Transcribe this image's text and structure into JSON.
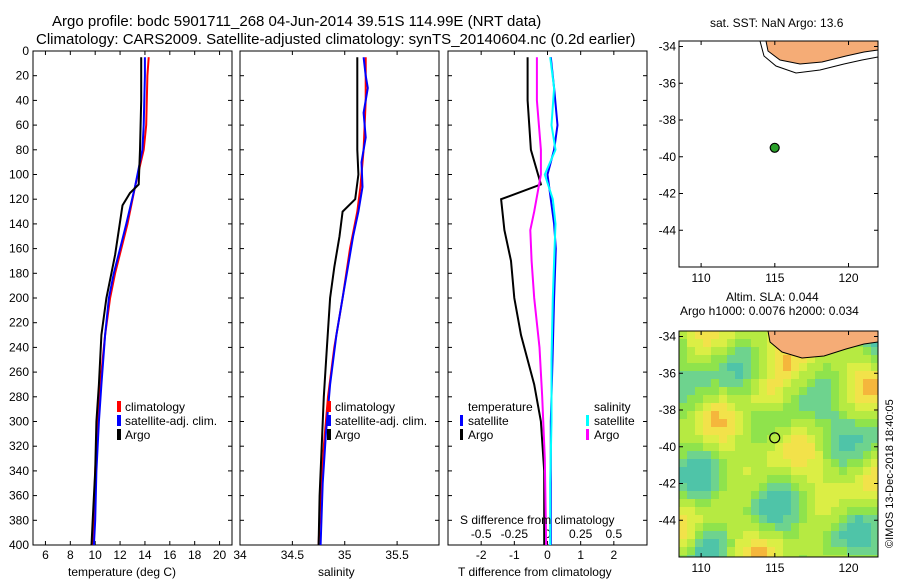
{
  "title_line1": "Argo profile: bodc 5901711_268 04-Jun-2014 39.51S 114.99E (NRT data)",
  "title_line2": "Climatology: CARS2009. Satellite-adjusted climatology: synTS_20140604.nc (0.2d earlier)",
  "stamp": "©IMOS 13-Dec-2018 18:40:05",
  "colors": {
    "climatology": "#ff0000",
    "satellite": "#0000ff",
    "argo": "#000000",
    "sat_salinity": "#00ffff",
    "argo_salinity": "#ff00ff",
    "land": "#f5ac76",
    "sea_base": "#7dde3c"
  },
  "depth_ticks": [
    0,
    20,
    40,
    60,
    80,
    100,
    120,
    140,
    160,
    180,
    200,
    220,
    240,
    260,
    280,
    300,
    320,
    340,
    360,
    380,
    400
  ],
  "chart_data": [
    {
      "id": "temperature",
      "type": "line",
      "xlabel": "temperature (deg C)",
      "ylabel": "depth",
      "xlim": [
        5,
        21
      ],
      "ylim": [
        400,
        0
      ],
      "x_ticks": [
        6,
        8,
        10,
        12,
        14,
        16,
        18,
        20
      ],
      "legend": [
        "climatology",
        "satellite-adj. clim.",
        "Argo"
      ],
      "series": [
        {
          "name": "climatology",
          "color": "#ff0000",
          "points": [
            [
              14.3,
              5
            ],
            [
              14.2,
              20
            ],
            [
              14.1,
              60
            ],
            [
              13.9,
              80
            ],
            [
              13.2,
              110
            ],
            [
              12.6,
              140
            ],
            [
              12.1,
              160
            ],
            [
              11.6,
              180
            ],
            [
              11.2,
              200
            ],
            [
              10.8,
              230
            ],
            [
              10.4,
              270
            ],
            [
              10.2,
              300
            ],
            [
              10.0,
              340
            ],
            [
              9.9,
              380
            ],
            [
              9.8,
              400
            ]
          ]
        },
        {
          "name": "satellite-adj. clim.",
          "color": "#0000ff",
          "points": [
            [
              14.0,
              5
            ],
            [
              14.0,
              20
            ],
            [
              13.9,
              60
            ],
            [
              13.8,
              80
            ],
            [
              13.2,
              110
            ],
            [
              12.5,
              140
            ],
            [
              12.0,
              160
            ],
            [
              11.5,
              180
            ],
            [
              11.1,
              200
            ],
            [
              10.8,
              230
            ],
            [
              10.5,
              270
            ],
            [
              10.3,
              300
            ],
            [
              10.1,
              340
            ],
            [
              10.0,
              380
            ],
            [
              9.9,
              400
            ]
          ]
        },
        {
          "name": "Argo",
          "color": "#000000",
          "points": [
            [
              13.7,
              5
            ],
            [
              13.7,
              40
            ],
            [
              13.6,
              80
            ],
            [
              13.5,
              108
            ],
            [
              12.8,
              115
            ],
            [
              12.2,
              125
            ],
            [
              11.9,
              145
            ],
            [
              11.6,
              165
            ],
            [
              11.3,
              180
            ],
            [
              10.9,
              200
            ],
            [
              10.5,
              230
            ],
            [
              10.3,
              270
            ],
            [
              10.1,
              300
            ],
            [
              10.0,
              340
            ],
            [
              9.8,
              380
            ],
            [
              9.7,
              400
            ]
          ]
        }
      ]
    },
    {
      "id": "salinity",
      "type": "line",
      "xlabel": "salinity",
      "ylabel": "depth",
      "xlim": [
        34,
        35.9
      ],
      "ylim": [
        400,
        0
      ],
      "x_ticks": [
        34,
        34.5,
        35,
        35.5
      ],
      "x_tick_labels": [
        "34",
        "34.5",
        "35",
        "35.5"
      ],
      "legend": [
        "climatology",
        "satellite-adj. clim.",
        "Argo"
      ],
      "series": [
        {
          "name": "climatology",
          "color": "#ff0000",
          "points": [
            [
              35.2,
              5
            ],
            [
              35.2,
              40
            ],
            [
              35.18,
              80
            ],
            [
              35.15,
              110
            ],
            [
              35.12,
              130
            ],
            [
              35.05,
              160
            ],
            [
              34.98,
              200
            ],
            [
              34.9,
              240
            ],
            [
              34.84,
              280
            ],
            [
              34.8,
              320
            ],
            [
              34.77,
              360
            ],
            [
              34.75,
              400
            ]
          ]
        },
        {
          "name": "satellite-adj. clim.",
          "color": "#0000ff",
          "points": [
            [
              35.18,
              5
            ],
            [
              35.2,
              20
            ],
            [
              35.22,
              30
            ],
            [
              35.18,
              50
            ],
            [
              35.2,
              70
            ],
            [
              35.16,
              90
            ],
            [
              35.17,
              110
            ],
            [
              35.13,
              130
            ],
            [
              35.08,
              150
            ],
            [
              35.03,
              175
            ],
            [
              34.98,
              200
            ],
            [
              34.92,
              230
            ],
            [
              34.86,
              270
            ],
            [
              34.82,
              310
            ],
            [
              34.79,
              350
            ],
            [
              34.77,
              400
            ]
          ]
        },
        {
          "name": "Argo",
          "color": "#000000",
          "points": [
            [
              35.12,
              5
            ],
            [
              35.12,
              80
            ],
            [
              35.13,
              100
            ],
            [
              35.1,
              120
            ],
            [
              34.98,
              130
            ],
            [
              34.95,
              150
            ],
            [
              34.9,
              175
            ],
            [
              34.86,
              200
            ],
            [
              34.83,
              240
            ],
            [
              34.8,
              280
            ],
            [
              34.78,
              320
            ],
            [
              34.76,
              360
            ],
            [
              34.75,
              400
            ]
          ]
        }
      ]
    },
    {
      "id": "difference",
      "type": "line",
      "xlabel": "T difference from climatology",
      "xlabel_top": "S difference from climatology",
      "ylabel": "depth",
      "xlim": [
        -3,
        3
      ],
      "ylim": [
        400,
        0
      ],
      "x_ticks": [
        -2,
        -1,
        0,
        1,
        2
      ],
      "s_xlim": [
        -0.75,
        0.75
      ],
      "s_ticks": [
        -0.5,
        -0.25,
        0,
        0.25,
        0.5
      ],
      "s_tick_labels": [
        "-0.5",
        "-0.25",
        "0",
        "0.25",
        "0.5"
      ],
      "legend_temperature": {
        "title": "temperature",
        "items": [
          "satellite",
          "Argo"
        ]
      },
      "legend_salinity": {
        "title": "salinity",
        "items": [
          "satellite",
          "Argo"
        ]
      },
      "series": [
        {
          "name": "T satellite",
          "color": "#0000ff",
          "points": [
            [
              0.1,
              5
            ],
            [
              0.2,
              30
            ],
            [
              0.3,
              60
            ],
            [
              0.2,
              80
            ],
            [
              0.0,
              100
            ],
            [
              0.1,
              120
            ],
            [
              0.2,
              140
            ],
            [
              0.25,
              160
            ],
            [
              0.2,
              200
            ],
            [
              0.15,
              250
            ],
            [
              0.1,
              300
            ],
            [
              0.1,
              350
            ],
            [
              0.1,
              400
            ]
          ]
        },
        {
          "name": "T Argo",
          "color": "#000000",
          "points": [
            [
              -0.6,
              5
            ],
            [
              -0.6,
              40
            ],
            [
              -0.5,
              80
            ],
            [
              -0.2,
              108
            ],
            [
              -1.4,
              120
            ],
            [
              -1.3,
              145
            ],
            [
              -1.1,
              170
            ],
            [
              -1.0,
              200
            ],
            [
              -0.8,
              230
            ],
            [
              -0.4,
              270
            ],
            [
              -0.2,
              300
            ],
            [
              -0.1,
              340
            ],
            [
              -0.1,
              380
            ],
            [
              -0.1,
              400
            ]
          ]
        },
        {
          "name": "S satellite",
          "color": "#00ffff",
          "points": [
            [
              0.02,
              5
            ],
            [
              0.05,
              30
            ],
            [
              0.03,
              60
            ],
            [
              0.06,
              80
            ],
            [
              -0.02,
              100
            ],
            [
              0.04,
              120
            ],
            [
              0.06,
              140
            ],
            [
              0.05,
              170
            ],
            [
              0.04,
              200
            ],
            [
              0.03,
              250
            ],
            [
              0.03,
              300
            ],
            [
              0.02,
              350
            ],
            [
              0.02,
              400
            ]
          ]
        },
        {
          "name": "S Argo",
          "color": "#ff00ff",
          "points": [
            [
              -0.08,
              5
            ],
            [
              -0.08,
              40
            ],
            [
              -0.05,
              80
            ],
            [
              -0.05,
              100
            ],
            [
              -0.1,
              130
            ],
            [
              -0.13,
              145
            ],
            [
              -0.12,
              170
            ],
            [
              -0.1,
              200
            ],
            [
              -0.06,
              240
            ],
            [
              -0.04,
              280
            ],
            [
              -0.02,
              330
            ],
            [
              -0.01,
              400
            ]
          ]
        }
      ]
    },
    {
      "id": "sst_map",
      "type": "scatter",
      "title": "sat. SST: NaN Argo: 13.6",
      "xlim": [
        108.5,
        122
      ],
      "ylim": [
        -46,
        -33.7
      ],
      "x_ticks": [
        110,
        115,
        120
      ],
      "y_ticks": [
        -34,
        -36,
        -38,
        -40,
        -42,
        -44
      ],
      "argo_position": [
        114.99,
        -39.51
      ]
    },
    {
      "id": "sla_map",
      "type": "heatmap",
      "title_line1": "Altim. SLA: 0.044",
      "title_line2": "Argo h1000: 0.0076 h2000: 0.034",
      "xlim": [
        108.5,
        122
      ],
      "ylim": [
        -46,
        -33.7
      ],
      "x_ticks": [
        110,
        115,
        120
      ],
      "y_ticks": [
        -34,
        -36,
        -38,
        -40,
        -42,
        -44
      ],
      "argo_position": [
        114.99,
        -39.51
      ]
    }
  ]
}
